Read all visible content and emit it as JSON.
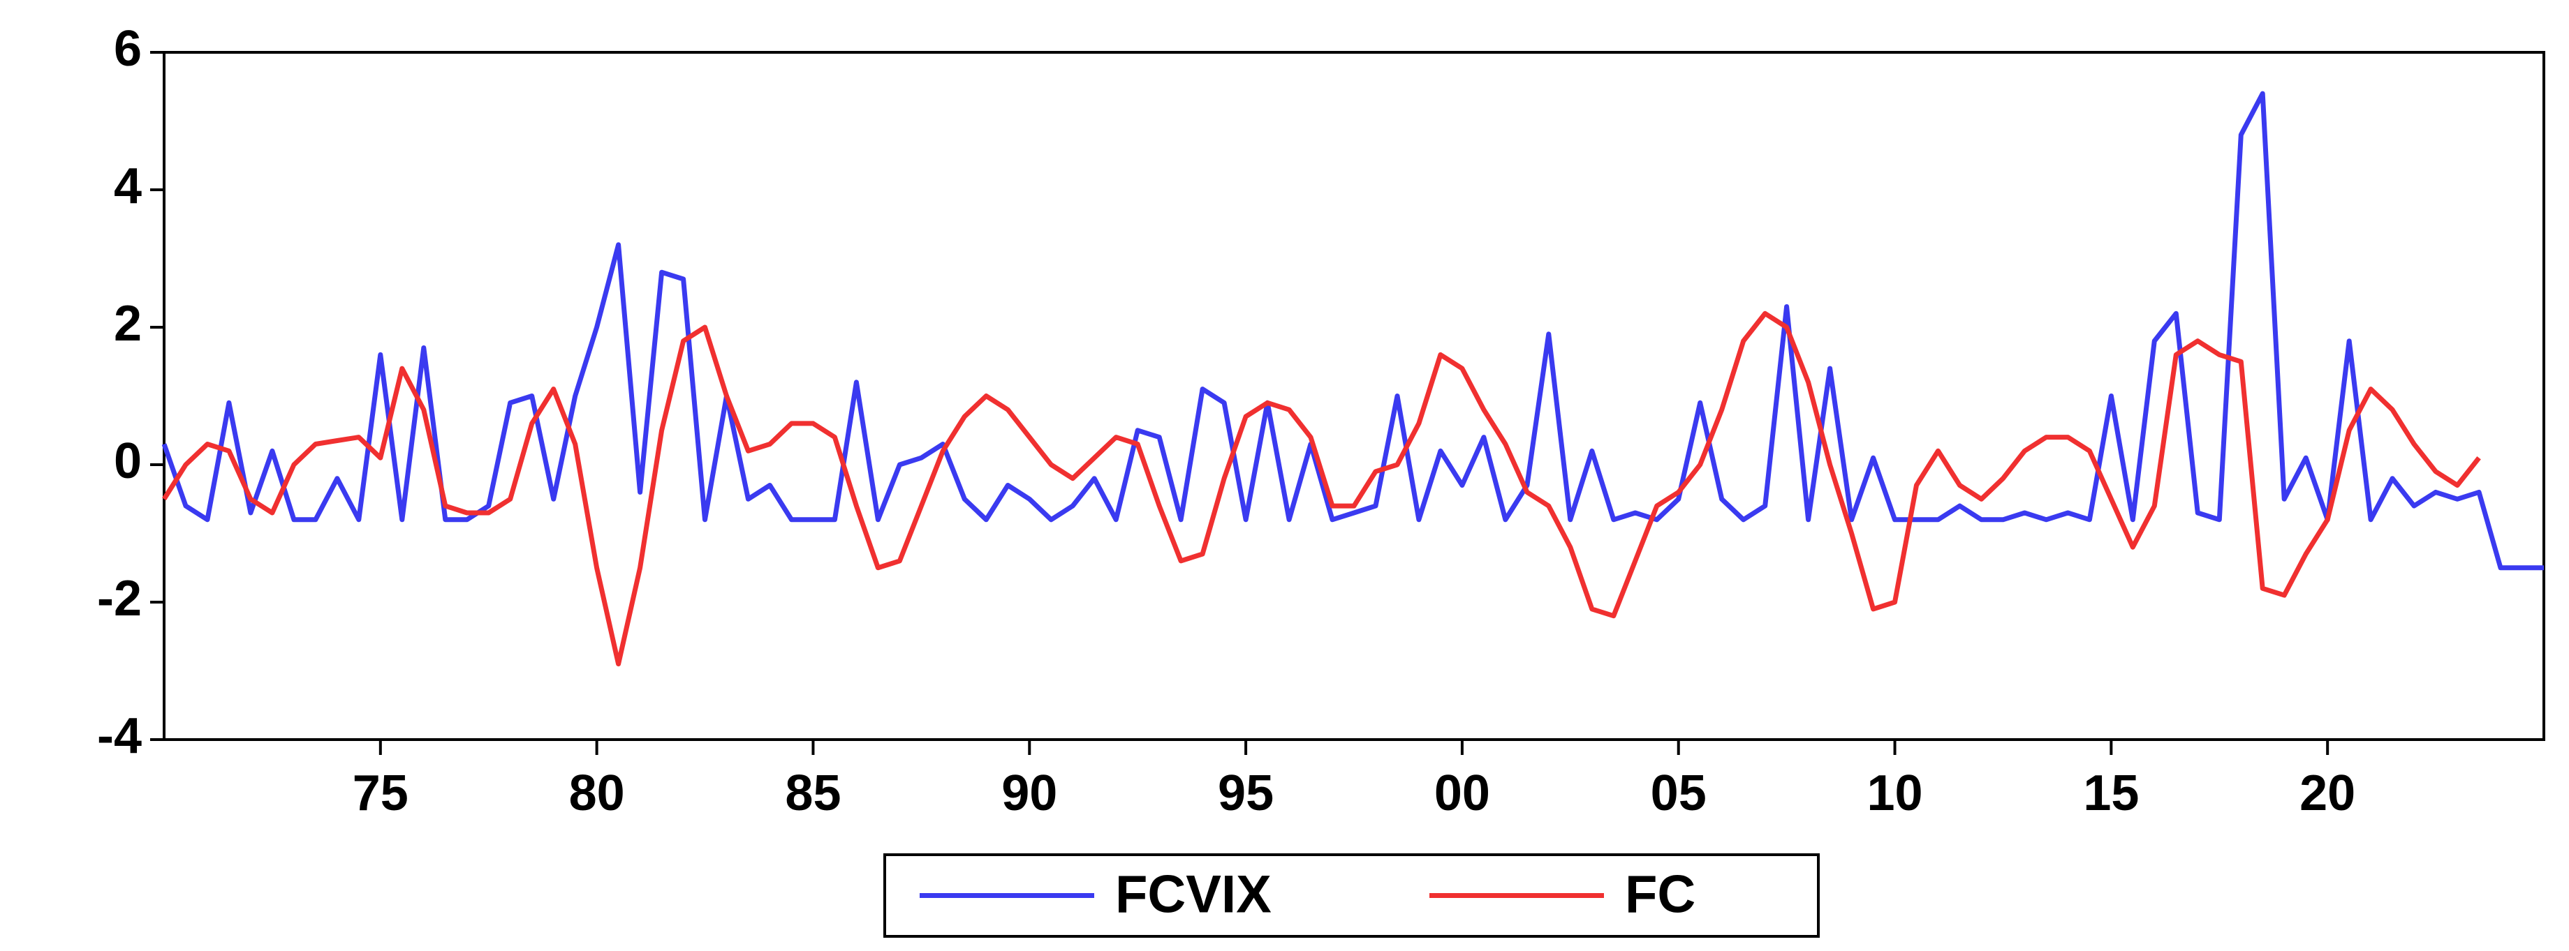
{
  "chart_data": {
    "type": "line",
    "x": [
      1970,
      1970.5,
      1971,
      1971.5,
      1972,
      1972.5,
      1973,
      1973.5,
      1974,
      1974.5,
      1975,
      1975.5,
      1976,
      1976.5,
      1977,
      1977.5,
      1978,
      1978.5,
      1979,
      1979.5,
      1980,
      1980.5,
      1981,
      1981.5,
      1982,
      1982.5,
      1983,
      1983.5,
      1984,
      1984.5,
      1985,
      1985.5,
      1986,
      1986.5,
      1987,
      1987.5,
      1988,
      1988.5,
      1989,
      1989.5,
      1990,
      1990.5,
      1991,
      1991.5,
      1992,
      1992.5,
      1993,
      1993.5,
      1994,
      1994.5,
      1995,
      1995.5,
      1996,
      1996.5,
      1997,
      1997.5,
      1998,
      1998.5,
      1999,
      1999.5,
      2000,
      2000.5,
      2001,
      2001.5,
      2002,
      2002.5,
      2003,
      2003.5,
      2004,
      2004.5,
      2005,
      2005.5,
      2006,
      2006.5,
      2007,
      2007.5,
      2008,
      2008.5,
      2009,
      2009.5,
      2010,
      2010.5,
      2011,
      2011.5,
      2012,
      2012.5,
      2013,
      2013.5,
      2014,
      2014.5,
      2015,
      2015.5,
      2016,
      2016.5,
      2017,
      2017.5,
      2018,
      2018.5,
      2019,
      2019.5,
      2020,
      2020.5,
      2021,
      2021.5,
      2022,
      2022.5,
      2023,
      2023.5,
      2024,
      2024.5,
      2025
    ],
    "series": [
      {
        "name": "FCVIX",
        "color": "#3a3af0",
        "values": [
          0.3,
          -0.6,
          -0.8,
          0.9,
          -0.7,
          0.2,
          -0.8,
          -0.8,
          -0.2,
          -0.8,
          1.6,
          -0.8,
          1.7,
          -0.8,
          -0.8,
          -0.6,
          0.9,
          1.0,
          -0.5,
          1.0,
          2.0,
          3.2,
          -0.4,
          2.8,
          2.7,
          -0.8,
          1.0,
          -0.5,
          -0.3,
          -0.8,
          -0.8,
          -0.8,
          1.2,
          -0.8,
          0.0,
          0.1,
          0.3,
          -0.5,
          -0.8,
          -0.3,
          -0.5,
          -0.8,
          -0.6,
          -0.2,
          -0.8,
          0.5,
          0.4,
          -0.8,
          1.1,
          0.9,
          -0.8,
          0.9,
          -0.8,
          0.3,
          -0.8,
          -0.7,
          -0.6,
          1.0,
          -0.8,
          0.2,
          -0.3,
          0.4,
          -0.8,
          -0.3,
          1.9,
          -0.8,
          0.2,
          -0.8,
          -0.7,
          -0.8,
          -0.5,
          0.9,
          -0.5,
          -0.8,
          -0.6,
          2.3,
          -0.8,
          1.4,
          -0.8,
          0.1,
          -0.8,
          -0.8,
          -0.8,
          -0.6,
          -0.8,
          -0.8,
          -0.7,
          -0.8,
          -0.7,
          -0.8,
          1.0,
          -0.8,
          1.8,
          2.2,
          -0.7,
          -0.8,
          4.8,
          5.4,
          -0.5,
          0.1,
          -0.8,
          1.8,
          -0.8,
          -0.2,
          -0.6,
          -0.4,
          -0.5,
          -0.4,
          -1.5,
          -1.5,
          -1.5
        ]
      },
      {
        "name": "FC",
        "color": "#f03030",
        "values": [
          -0.5,
          0,
          0.3,
          0.2,
          -0.5,
          -0.7,
          0,
          0.3,
          0.35,
          0.4,
          0.1,
          1.4,
          0.8,
          -0.6,
          -0.7,
          -0.7,
          -0.5,
          0.6,
          1.1,
          0.3,
          -1.5,
          -2.9,
          -1.5,
          0.5,
          1.8,
          2.0,
          1.0,
          0.2,
          0.3,
          0.6,
          0.6,
          0.4,
          -0.6,
          -1.5,
          -1.4,
          -0.6,
          0.2,
          0.7,
          1.0,
          0.8,
          0.4,
          0.0,
          -0.2,
          0.1,
          0.4,
          0.3,
          -0.6,
          -1.4,
          -1.3,
          -0.2,
          0.7,
          0.9,
          0.8,
          0.4,
          -0.6,
          -0.6,
          -0.1,
          0.0,
          0.6,
          1.6,
          1.4,
          0.8,
          0.3,
          -0.4,
          -0.6,
          -1.2,
          -2.1,
          -2.2,
          -1.4,
          -0.6,
          -0.4,
          0.0,
          0.8,
          1.8,
          2.2,
          2.0,
          1.2,
          0.0,
          -1.0,
          -2.1,
          -2.0,
          -0.3,
          0.2,
          -0.3,
          -0.5,
          -0.2,
          0.2,
          0.4,
          0.4,
          0.2,
          -0.5,
          -1.2,
          -0.6,
          1.6,
          1.8,
          1.6,
          1.5,
          -1.8,
          -1.9,
          -1.3,
          -0.8,
          0.5,
          1.1,
          0.8,
          0.3,
          -0.1,
          -0.3,
          0.1,
          null,
          null,
          null
        ]
      }
    ],
    "xlim": [
      1970,
      2025
    ],
    "xticks": [
      {
        "value": 1975,
        "label": "75"
      },
      {
        "value": 1980,
        "label": "80"
      },
      {
        "value": 1985,
        "label": "85"
      },
      {
        "value": 1990,
        "label": "90"
      },
      {
        "value": 1995,
        "label": "95"
      },
      {
        "value": 2000,
        "label": "00"
      },
      {
        "value": 2005,
        "label": "05"
      },
      {
        "value": 2010,
        "label": "10"
      },
      {
        "value": 2015,
        "label": "15"
      },
      {
        "value": 2020,
        "label": "20"
      }
    ],
    "ylim": [
      -4,
      6
    ],
    "yticks": [
      -4,
      -2,
      0,
      2,
      4,
      6
    ],
    "grid": false,
    "legend": "bottom"
  }
}
